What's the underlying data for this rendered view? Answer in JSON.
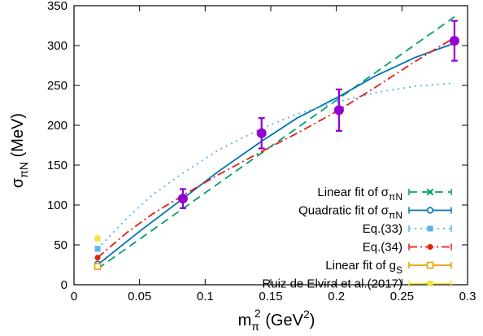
{
  "chart_data": {
    "type": "line",
    "xlabel": "mπ² (GeV²)",
    "xlabel_main": "m",
    "xlabel_sub": "π",
    "xlabel_sup": "2",
    "xlabel_unit": " (GeV",
    "xlabel_unit_sup": "2",
    "xlabel_close": ")",
    "ylabel": "σπN (MeV)",
    "ylabel_main": "σ",
    "ylabel_sub": "πN",
    "ylabel_unit": " (MeV)",
    "xlim": [
      0,
      0.3
    ],
    "ylim": [
      0,
      350
    ],
    "xticks": [
      0,
      0.05,
      0.1,
      0.15,
      0.2,
      0.25,
      0.3
    ],
    "xtick_labels": [
      "0",
      "0.05",
      "0.1",
      "0.15",
      "0.2",
      "0.25",
      "0.3"
    ],
    "yticks": [
      0,
      50,
      100,
      150,
      200,
      250,
      300,
      350
    ],
    "ytick_labels": [
      "0",
      "50",
      "100",
      "150",
      "200",
      "250",
      "300",
      "350"
    ],
    "grid": false,
    "legend_position": "bottom-right",
    "lattice_points": {
      "x": [
        0.083,
        0.143,
        0.202,
        0.29
      ],
      "y": [
        108,
        190,
        219,
        306
      ],
      "err": [
        12,
        19,
        26,
        25
      ],
      "color": "#9400d3"
    },
    "series": [
      {
        "name": "Linear fit of σπN",
        "label_main": "Linear fit of σ",
        "label_sub": "πN",
        "color": "#009e73",
        "dash": "10,6",
        "marker": "x",
        "x": [
          0.018,
          0.29
        ],
        "y": [
          20,
          336
        ],
        "extrap_point": {
          "x": 0.018,
          "y": 24,
          "err": 3
        }
      },
      {
        "name": "Quadratic fit of σπN",
        "label_main": "Quadratic fit of σ",
        "label_sub": "πN",
        "color": "#0072b2",
        "dash": "",
        "marker": "circle-open",
        "x": [
          0.018,
          0.05,
          0.083,
          0.11,
          0.143,
          0.17,
          0.202,
          0.23,
          0.26,
          0.29
        ],
        "y": [
          25,
          67,
          108,
          142,
          180,
          209,
          236,
          262,
          285,
          303
        ],
        "extrap_point": {
          "x": 0.018,
          "y": 26,
          "err": 3
        }
      },
      {
        "name": "Eq.(33)",
        "label_main": "Eq.(33)",
        "label_sub": "",
        "color": "#56b4e9",
        "dash": "2,5",
        "marker": "square",
        "x": [
          0.018,
          0.04,
          0.06,
          0.083,
          0.11,
          0.143,
          0.17,
          0.202,
          0.23,
          0.26,
          0.29
        ],
        "y": [
          45,
          83,
          113,
          140,
          169,
          196,
          214,
          230,
          241,
          249,
          253
        ],
        "extrap_point": {
          "x": 0.018,
          "y": 45,
          "err": 3
        }
      },
      {
        "name": "Eq.(34)",
        "label_main": "Eq.(34)",
        "label_sub": "",
        "color": "#e51e10",
        "dash": "10,4,2,4",
        "marker": "circle",
        "x": [
          0.018,
          0.04,
          0.06,
          0.083,
          0.11,
          0.143,
          0.17,
          0.202,
          0.23,
          0.26,
          0.29
        ],
        "y": [
          34,
          65,
          89,
          112,
          138,
          167,
          190,
          219,
          248,
          280,
          310
        ],
        "extrap_point": {
          "x": 0.018,
          "y": 34,
          "err": 3
        }
      },
      {
        "name": "Linear fit of gS",
        "label_main": "Linear fit of g",
        "label_sub": "S",
        "color": "#e69f00",
        "dash": "",
        "marker": "square-open",
        "x": [],
        "y": [],
        "extrap_point": {
          "x": 0.018,
          "y": 23,
          "err": 2
        }
      },
      {
        "name": "Ruiz de Elvira et al.(2017)",
        "label_main": "Ruiz de Elvira et al.(2017)",
        "label_sub": "",
        "color": "#f0e442",
        "dash": "",
        "marker": "square",
        "x": [],
        "y": [],
        "extrap_point": {
          "x": 0.018,
          "y": 58,
          "err": 5
        }
      }
    ]
  }
}
